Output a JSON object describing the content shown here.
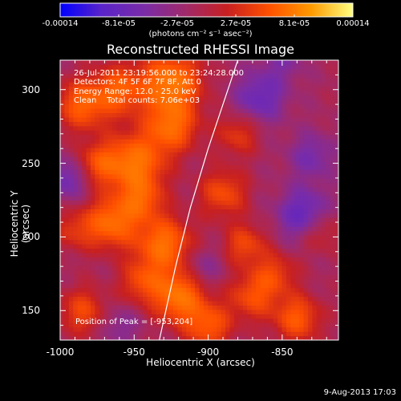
{
  "colorbar": {
    "tick_labels": [
      "-0.00014",
      "-8.1e-05",
      "-2.7e-05",
      "2.7e-05",
      "8.1e-05",
      "0.00014"
    ],
    "unit": "(photons cm⁻² s⁻¹ asec⁻²)",
    "colors": [
      "#0000ff",
      "#5a24c8",
      "#7a2ca8",
      "#a02a6a",
      "#c82020",
      "#ff5000",
      "#ff9a00",
      "#ffff80"
    ]
  },
  "info": {
    "line1": "26-Jul-2011 23:19:56.000 to 23:24:28.000",
    "line2": "Detectors: 4F 5F 6F 7F 8F, Att 0",
    "line3": "Energy Range: 12.0 - 25.0 keV",
    "line4": "Clean    Total counts: 7.06e+03"
  },
  "peak_text": "Position of Peak = [-953,204]",
  "footer_text": "9-Aug-2013 17:03",
  "chart_data": {
    "type": "heatmap",
    "title": "Reconstructed RHESSI Image",
    "xlabel": "Heliocentric X (arcsec)",
    "ylabel": "Heliocentric Y (arcsec)",
    "xlim": [
      -1000,
      -812
    ],
    "ylim": [
      130,
      320
    ],
    "x_ticks": [
      -1000,
      -950,
      -900,
      -850
    ],
    "y_ticks": [
      150,
      200,
      250,
      300
    ],
    "colorbar_range": [
      -0.00014,
      0.00014
    ],
    "peak": [
      -953,
      204
    ],
    "limb_curve": [
      [
        -933,
        130
      ],
      [
        -922,
        180
      ],
      [
        -912,
        220
      ],
      [
        -900,
        260
      ],
      [
        -890,
        290
      ],
      [
        -880,
        320
      ]
    ],
    "blobs": [
      {
        "x": -925,
        "y": 305,
        "v": 1.0,
        "s": 14
      },
      {
        "x": -925,
        "y": 275,
        "v": 0.8,
        "s": 12
      },
      {
        "x": -950,
        "y": 250,
        "v": 0.95,
        "s": 14
      },
      {
        "x": -960,
        "y": 300,
        "v": 0.7,
        "s": 12
      },
      {
        "x": -985,
        "y": 290,
        "v": 0.75,
        "s": 12
      },
      {
        "x": -975,
        "y": 250,
        "v": 0.55,
        "s": 10
      },
      {
        "x": -965,
        "y": 210,
        "v": 0.85,
        "s": 12
      },
      {
        "x": -945,
        "y": 225,
        "v": 0.6,
        "s": 10
      },
      {
        "x": -930,
        "y": 195,
        "v": 0.9,
        "s": 13
      },
      {
        "x": -920,
        "y": 160,
        "v": 0.95,
        "s": 12
      },
      {
        "x": -945,
        "y": 170,
        "v": 0.55,
        "s": 10
      },
      {
        "x": -890,
        "y": 230,
        "v": 0.6,
        "s": 11
      },
      {
        "x": -880,
        "y": 270,
        "v": 0.45,
        "s": 10
      },
      {
        "x": -875,
        "y": 195,
        "v": 0.55,
        "s": 10
      },
      {
        "x": -870,
        "y": 160,
        "v": 0.6,
        "s": 11
      },
      {
        "x": -855,
        "y": 175,
        "v": 0.5,
        "s": 10
      },
      {
        "x": -840,
        "y": 145,
        "v": 0.7,
        "s": 11
      },
      {
        "x": -825,
        "y": 205,
        "v": 0.45,
        "s": 10
      },
      {
        "x": -900,
        "y": 140,
        "v": 0.7,
        "s": 11
      },
      {
        "x": -985,
        "y": 150,
        "v": 0.55,
        "s": 11
      },
      {
        "x": -990,
        "y": 205,
        "v": 0.4,
        "s": 10
      },
      {
        "x": -995,
        "y": 240,
        "v": -0.5,
        "s": 10
      },
      {
        "x": -865,
        "y": 295,
        "v": -0.55,
        "s": 12
      },
      {
        "x": -830,
        "y": 255,
        "v": -0.4,
        "s": 11
      },
      {
        "x": -835,
        "y": 215,
        "v": -0.7,
        "s": 12
      },
      {
        "x": -905,
        "y": 180,
        "v": -0.3,
        "s": 10
      },
      {
        "x": -960,
        "y": 140,
        "v": -0.3,
        "s": 9
      },
      {
        "x": -850,
        "y": 320,
        "v": -0.3,
        "s": 10
      }
    ]
  }
}
